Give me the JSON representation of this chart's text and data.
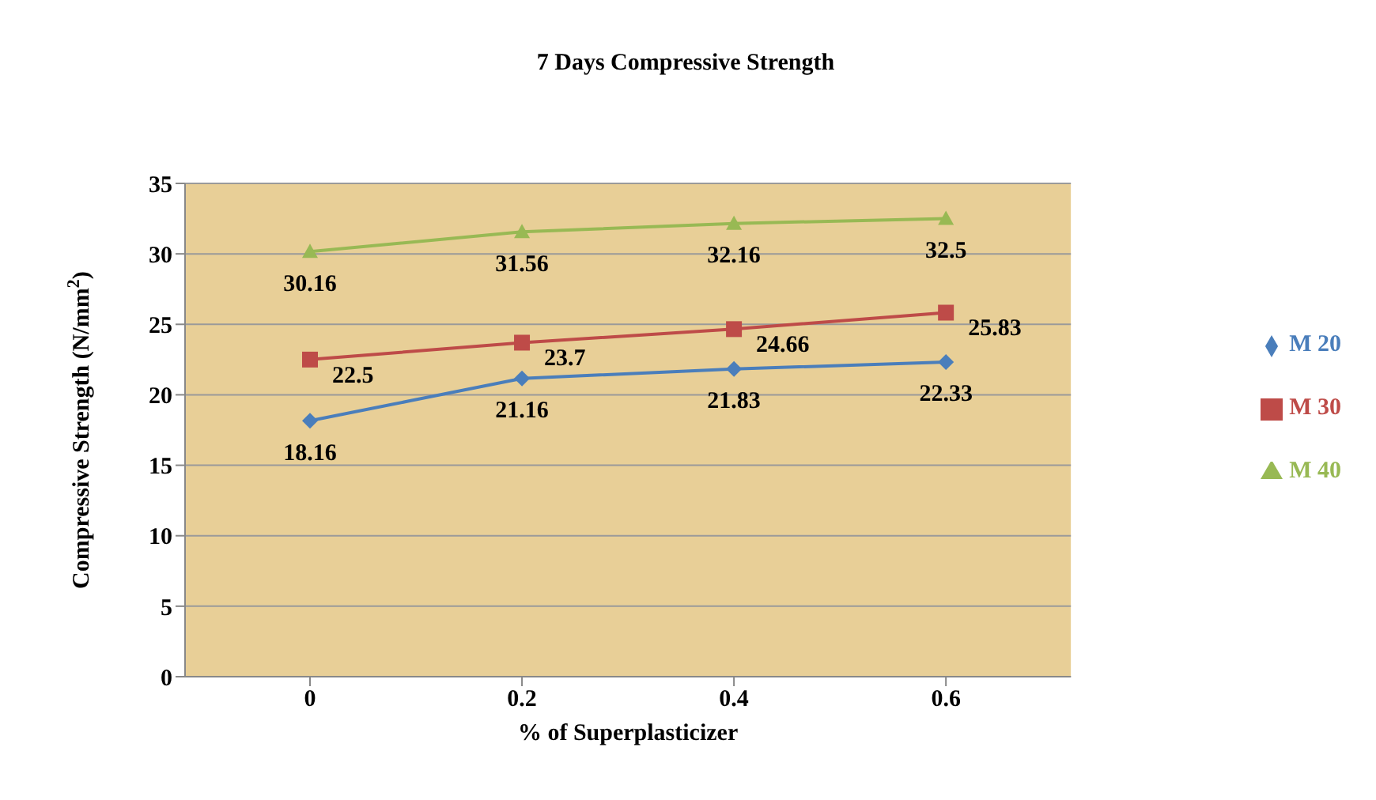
{
  "chart_data": {
    "type": "line",
    "title": "7 Days Compressive Strength",
    "xlabel": "% of Superplasticizer",
    "ylabel": "Compressive Strength (N/mm$^{2}$)",
    "categories": [
      "0",
      "0.2",
      "0.4",
      "0.6"
    ],
    "series": [
      {
        "name": "M 20",
        "color": "#4a7ebb",
        "marker": "diamond",
        "values": [
          18.16,
          21.16,
          21.83,
          22.33
        ]
      },
      {
        "name": "M 30",
        "color": "#be4b48",
        "marker": "square",
        "values": [
          22.5,
          23.7,
          24.66,
          25.83
        ]
      },
      {
        "name": "M 40",
        "color": "#98b954",
        "marker": "triangle",
        "values": [
          30.16,
          31.56,
          32.16,
          32.5
        ]
      }
    ],
    "ylim": [
      0,
      35
    ],
    "yticks": [
      0,
      5,
      10,
      15,
      20,
      25,
      30,
      35
    ],
    "grid": "y",
    "legend": "right",
    "data_labels": true
  }
}
